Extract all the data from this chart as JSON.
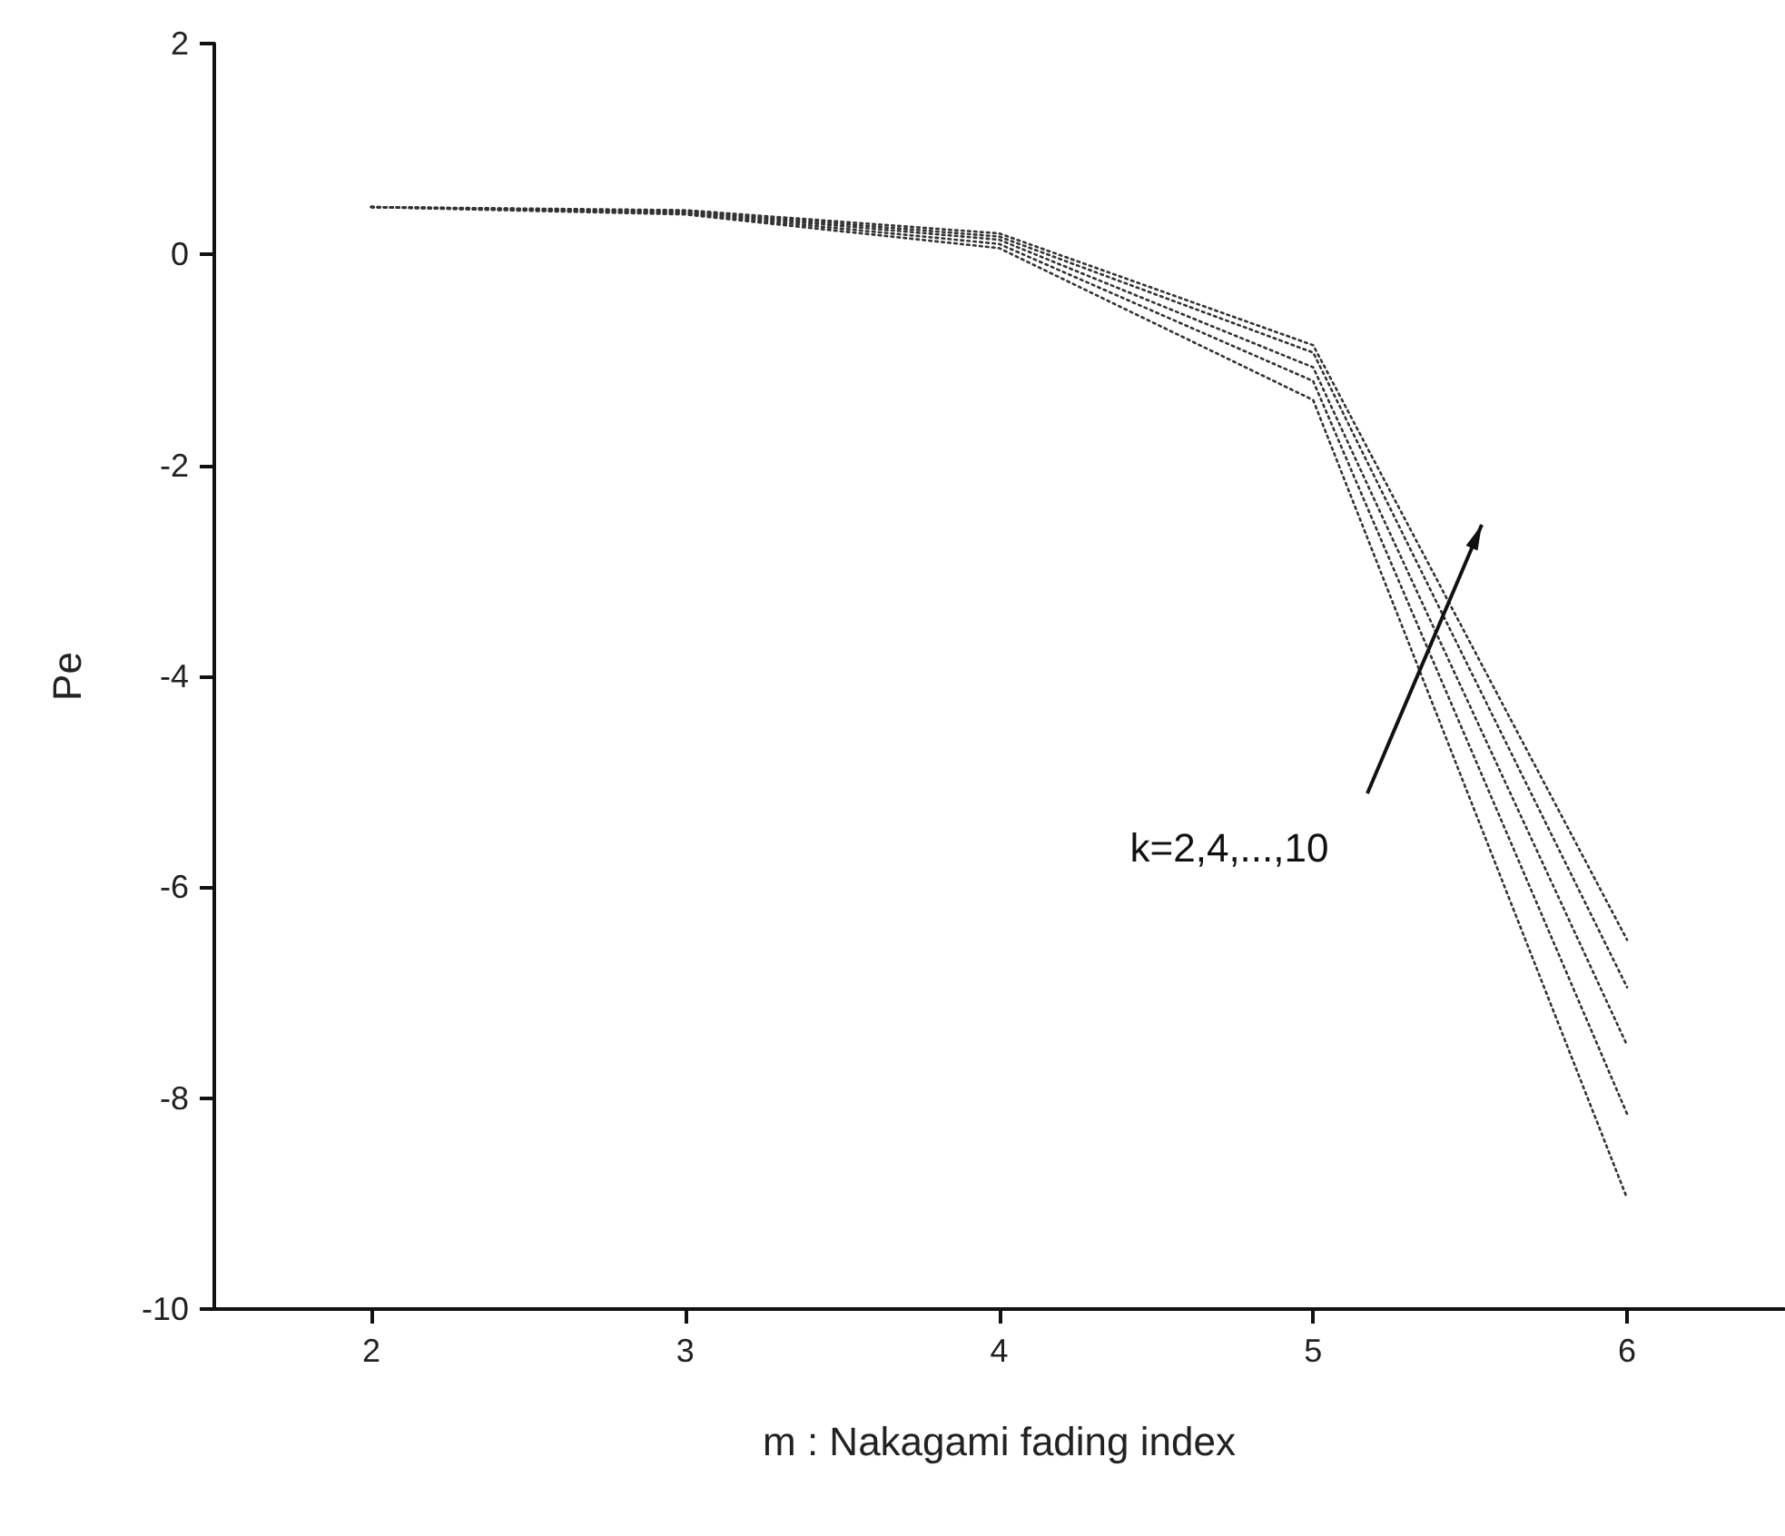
{
  "chart_data": {
    "type": "line",
    "xlabel": "m : Nakagami fading index",
    "ylabel": "Pe",
    "x": [
      2,
      3,
      4,
      5,
      6
    ],
    "series": [
      {
        "color": "#333333",
        "values": [
          0.45,
          0.42,
          0.2,
          -0.86,
          -6.5
        ]
      },
      {
        "color": "#333333",
        "values": [
          0.45,
          0.41,
          0.17,
          -0.93,
          -6.95
        ]
      },
      {
        "color": "#333333",
        "values": [
          0.45,
          0.4,
          0.14,
          -1.07,
          -7.5
        ]
      },
      {
        "color": "#333333",
        "values": [
          0.45,
          0.39,
          0.1,
          -1.2,
          -8.15
        ]
      },
      {
        "color": "#333333",
        "values": [
          0.45,
          0.38,
          0.06,
          -1.38,
          -8.95
        ]
      }
    ],
    "xlim": [
      1.5,
      6.5
    ],
    "xticks": [
      2,
      3,
      4,
      5,
      6
    ],
    "ylim": [
      -10,
      2
    ],
    "yticks": [
      -10,
      -8,
      -6,
      -4,
      -2,
      0,
      2
    ],
    "annotations": [
      "k=2,4,...,10"
    ],
    "marker": "none",
    "line_style": "dotted"
  }
}
